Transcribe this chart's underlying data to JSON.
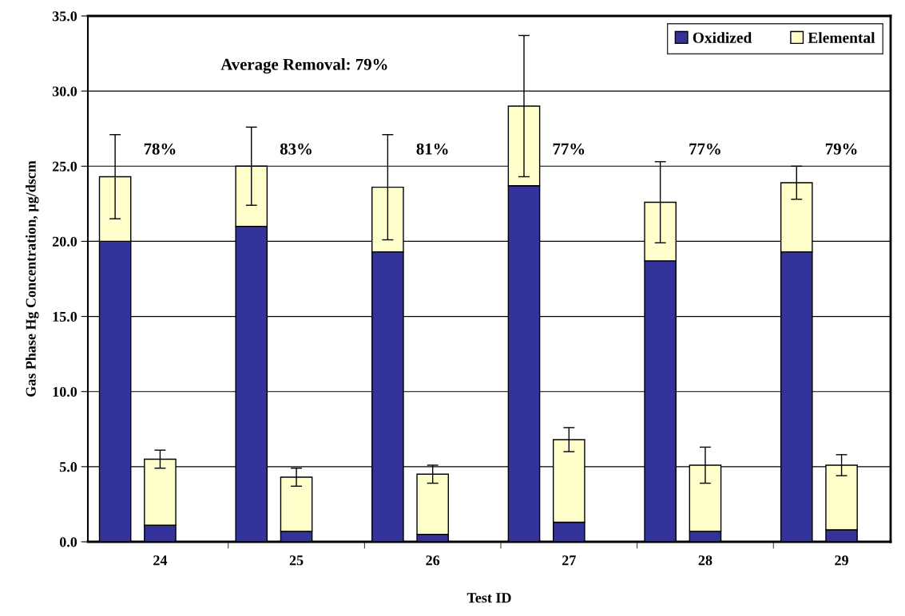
{
  "chart_data": {
    "type": "bar",
    "stacked": true,
    "xlabel": "Test ID",
    "ylabel": "Gas Phase Hg Concentration, µg/dscm",
    "categories": [
      null,
      "24",
      null,
      "25",
      null,
      "26",
      null,
      "27",
      null,
      "28",
      null,
      "29"
    ],
    "series": [
      {
        "name": "Oxidized",
        "color": "#333399",
        "values": [
          20.0,
          1.1,
          21.0,
          0.7,
          19.3,
          0.5,
          23.7,
          1.3,
          18.7,
          0.7,
          19.3,
          0.8
        ]
      },
      {
        "name": "Elemental",
        "color": "#ffffcc",
        "values": [
          4.3,
          4.4,
          4.0,
          3.6,
          4.3,
          4.0,
          5.3,
          5.5,
          3.9,
          4.4,
          4.6,
          4.3
        ],
        "errors": [
          2.8,
          0.6,
          2.6,
          0.6,
          3.5,
          0.6,
          4.7,
          0.8,
          2.7,
          1.2,
          1.1,
          0.7
        ]
      }
    ],
    "ylim": [
      0,
      35
    ],
    "yticks": [
      {
        "value": 0,
        "label": "0.0"
      },
      {
        "value": 5,
        "label": "5.0"
      },
      {
        "value": 10,
        "label": "10.0"
      },
      {
        "value": 15,
        "label": "15.0"
      },
      {
        "value": 20,
        "label": "20.0"
      },
      {
        "value": 25,
        "label": "25.0"
      },
      {
        "value": 30,
        "label": "30.0"
      },
      {
        "value": 35,
        "label": "35.0"
      }
    ],
    "grid": "y",
    "legend": "top right",
    "annotations": [
      "Average Removal: 79%",
      "78%",
      "83%",
      "81%",
      "77%",
      "77%",
      "79%"
    ]
  }
}
